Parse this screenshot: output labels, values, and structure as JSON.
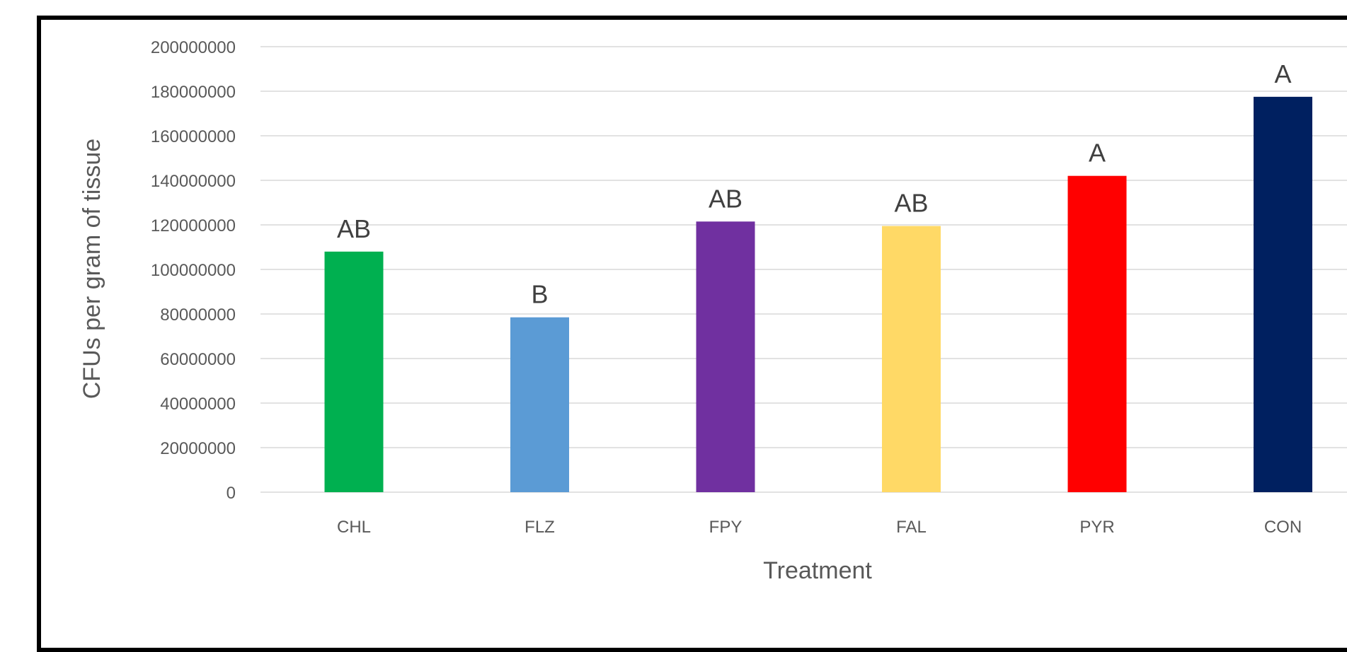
{
  "chart_data": {
    "type": "bar",
    "title": "",
    "xlabel": "Treatment",
    "ylabel": "CFUs per gram of tissue",
    "categories": [
      "CHL",
      "FLZ",
      "FPY",
      "FAL",
      "PYR",
      "CON"
    ],
    "values": [
      108000000,
      78500000,
      121500000,
      119500000,
      142000000,
      177500000
    ],
    "data_labels": [
      "AB",
      "B",
      "AB",
      "AB",
      "A",
      "A"
    ],
    "colors": [
      "#00b050",
      "#5b9bd5",
      "#7030a0",
      "#ffd966",
      "#ff0000",
      "#002060"
    ],
    "ylim": [
      0,
      200000000
    ],
    "yticks": [
      "0",
      "20000000",
      "40000000",
      "60000000",
      "80000000",
      "100000000",
      "120000000",
      "140000000",
      "160000000",
      "180000000",
      "200000000"
    ],
    "grid": true,
    "gridline_color": "#d9d9d9",
    "legend": "none"
  }
}
